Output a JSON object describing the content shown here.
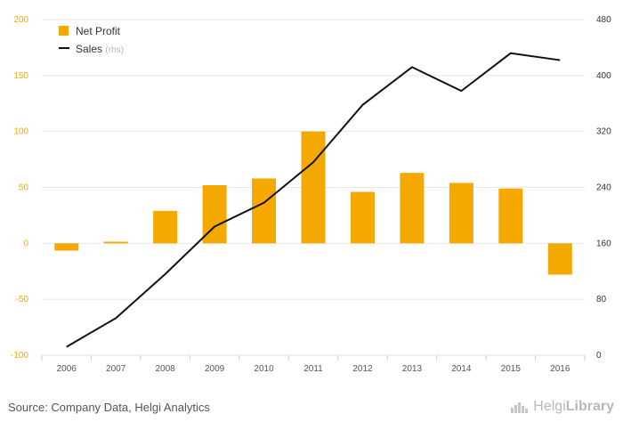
{
  "chart_data": {
    "type": "bar",
    "categories": [
      "2006",
      "2007",
      "2008",
      "2009",
      "2010",
      "2011",
      "2012",
      "2013",
      "2014",
      "2015",
      "2016"
    ],
    "series": [
      {
        "name": "Net Profit",
        "kind": "bar",
        "axis": "left",
        "color": "#F5A900",
        "values": [
          -6.5,
          1.5,
          29,
          52,
          58,
          100,
          46,
          63,
          54,
          49,
          -28
        ]
      },
      {
        "name": "Sales",
        "name_suffix": "(rhs)",
        "kind": "line",
        "axis": "right",
        "color": "#111111",
        "values": [
          12,
          53,
          116,
          184,
          218,
          276,
          358,
          412,
          378,
          432,
          422
        ]
      }
    ],
    "y_left": {
      "min": -100,
      "max": 200,
      "ticks": [
        -100,
        -50,
        0,
        50,
        100,
        150,
        200
      ],
      "tick_color": "#F5A900"
    },
    "y_right": {
      "min": 0,
      "max": 480,
      "ticks": [
        0,
        80,
        160,
        240,
        320,
        400,
        480
      ],
      "tick_color": "#333333"
    },
    "grid": true,
    "legend": "top-left",
    "title": "",
    "xlabel": "",
    "ylabel": ""
  },
  "footer": {
    "source": "Source: Company Data, Helgi Analytics",
    "brand_left": "Helgi",
    "brand_right": "Library",
    "brand_icon": "helgi-library-logo-icon"
  }
}
